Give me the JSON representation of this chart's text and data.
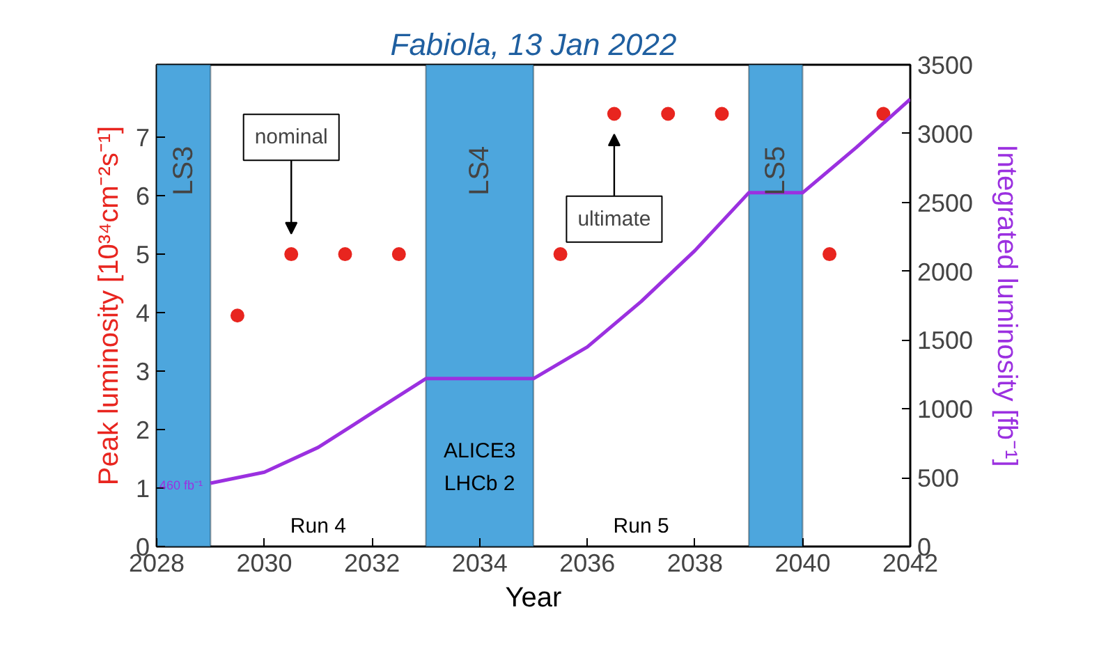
{
  "chart_data": {
    "type": "scatter",
    "title": "Fabiola, 13 Jan 2022",
    "xlabel": "Year",
    "ylabel": "Peak luminosity [10³⁴cm⁻²s⁻¹]",
    "y2label": "Integrated luminosity [fb⁻¹]",
    "xlim": [
      2028,
      2042
    ],
    "xticks": [
      2028,
      2030,
      2032,
      2034,
      2036,
      2038,
      2040,
      2042
    ],
    "ylim": [
      0,
      8.24
    ],
    "yticks": [
      0,
      1,
      2,
      3,
      4,
      5,
      6,
      7
    ],
    "y2lim": [
      0,
      3500
    ],
    "y2ticks": [
      0,
      500,
      1000,
      1500,
      2000,
      2500,
      3000,
      3500
    ],
    "grid": false,
    "series": [
      {
        "marker": "circle",
        "color": "#e8251f",
        "x": [
          2029.5,
          2030.5,
          2031.5,
          2032.5,
          2035.5,
          2036.5,
          2037.5,
          2038.5,
          2040.5,
          2041.5
        ],
        "values": [
          3.95,
          5,
          5,
          5,
          5,
          7.4,
          7.4,
          7.4,
          5,
          7.4
        ]
      },
      {
        "type": "line",
        "axis": "y2",
        "color": "#9b30e0",
        "line_style": "solid",
        "x": [
          2029,
          2030,
          2031,
          2032,
          2033,
          2035,
          2036,
          2037,
          2038,
          2039,
          2040,
          2041,
          2042
        ],
        "values": [
          460,
          540,
          720,
          970,
          1220,
          1220,
          1450,
          1780,
          2150,
          2570,
          2570,
          2900,
          3250
        ]
      }
    ],
    "bands": [
      {
        "axis": "x",
        "from": 2028,
        "to": 2029,
        "label": "LS3",
        "color": "#4da6dd"
      },
      {
        "axis": "x",
        "from": 2033,
        "to": 2035,
        "label": "LS4",
        "color": "#4da6dd"
      },
      {
        "axis": "x",
        "from": 2039,
        "to": 2040,
        "label": "LS5",
        "color": "#4da6dd"
      }
    ],
    "annotations": [
      "nominal",
      "ultimate",
      "460 fb⁻¹",
      "Run 4",
      "Run 5",
      "ALICE3\nLHCb 2"
    ]
  }
}
